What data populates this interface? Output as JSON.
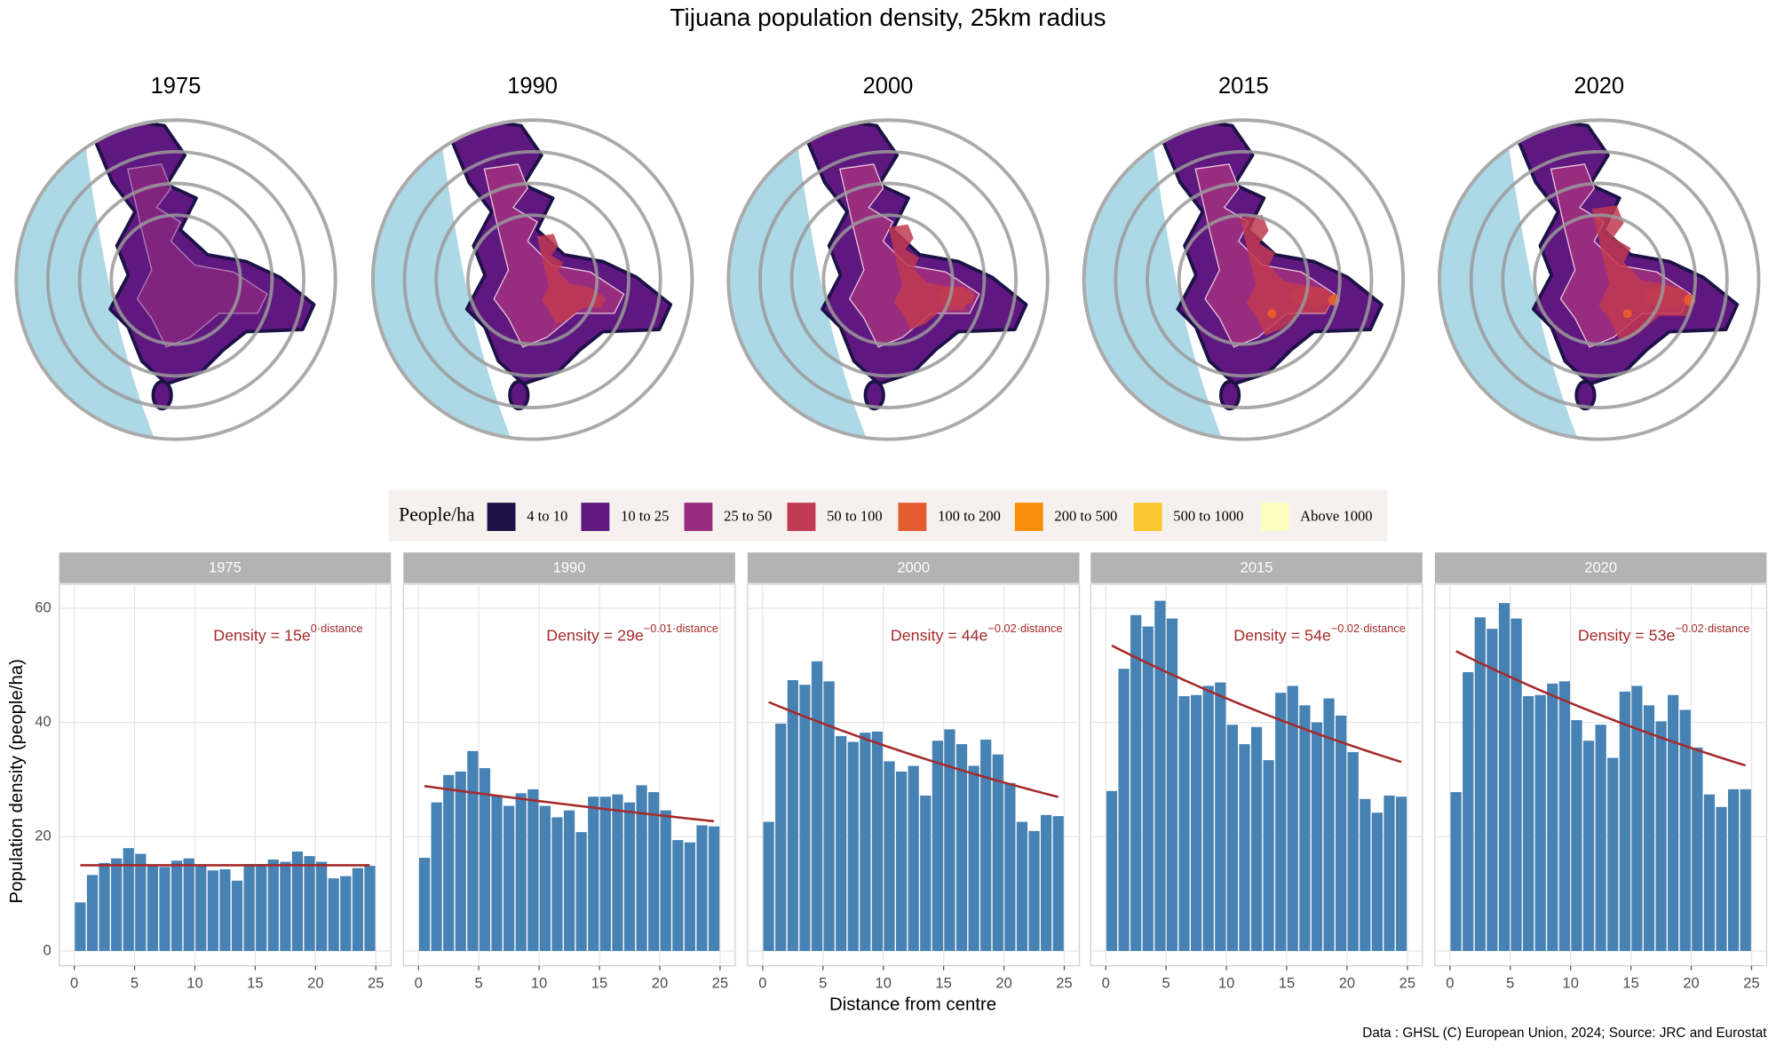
{
  "title": "Tijuana population density, 25km radius",
  "map_titles": [
    "1975",
    "1990",
    "2000",
    "2015",
    "2020"
  ],
  "legend": {
    "title": "People/ha",
    "items": [
      {
        "label": "4 to 10",
        "color": "#1d1147"
      },
      {
        "label": "10 to 25",
        "color": "#5f187f"
      },
      {
        "label": "25 to 50",
        "color": "#982d80"
      },
      {
        "label": "50 to 100",
        "color": "#c03a51"
      },
      {
        "label": "100 to 200",
        "color": "#e55c30"
      },
      {
        "label": "200 to 500",
        "color": "#f98e09"
      },
      {
        "label": "500 to 1000",
        "color": "#fbc72f"
      },
      {
        "label": "Above 1000",
        "color": "#fcfdbf"
      }
    ]
  },
  "axis_labels": {
    "y": "Population density (people/ha)",
    "x": "Distance from centre"
  },
  "caption": "Data : GHSL (C) European Union, 2024; Source: JRC and Eurostat",
  "chart_data": [
    {
      "type": "bar",
      "title": "1975",
      "color": "#4682b4",
      "x": [
        0.5,
        1.5,
        2.5,
        3.5,
        4.5,
        5.5,
        6.5,
        7.5,
        8.5,
        9.5,
        10.5,
        11.5,
        12.5,
        13.5,
        14.5,
        15.5,
        16.5,
        17.5,
        18.5,
        19.5,
        20.5,
        21.5,
        22.5,
        23.5,
        24.5
      ],
      "values": [
        8.5,
        13.3,
        15.4,
        16.2,
        18.0,
        17.0,
        14.9,
        14.7,
        15.8,
        16.2,
        14.9,
        14.1,
        14.3,
        12.3,
        15.2,
        15.2,
        16.0,
        15.6,
        17.4,
        16.6,
        15.6,
        12.7,
        13.1,
        14.5,
        14.9
      ],
      "xlim": [
        -1.25,
        26.25
      ],
      "xticks": [
        0,
        5,
        10,
        15,
        20,
        25
      ],
      "ylim": [
        -2.6,
        64.2
      ],
      "yticks": [
        0,
        20,
        40,
        60
      ],
      "grid": true,
      "fit": {
        "a": 15,
        "b": 0,
        "text": "Density = 15e",
        "exponent": "0·distance",
        "color": "#a52a2a"
      }
    },
    {
      "type": "bar",
      "title": "1990",
      "color": "#4682b4",
      "x": [
        0.5,
        1.5,
        2.5,
        3.5,
        4.5,
        5.5,
        6.5,
        7.5,
        8.5,
        9.5,
        10.5,
        11.5,
        12.5,
        13.5,
        14.5,
        15.5,
        16.5,
        17.5,
        18.5,
        19.5,
        20.5,
        21.5,
        22.5,
        23.5,
        24.5
      ],
      "values": [
        16.3,
        26.0,
        30.8,
        31.4,
        35.0,
        32.0,
        27.2,
        25.4,
        27.6,
        28.3,
        25.4,
        23.4,
        24.6,
        20.8,
        27.0,
        27.0,
        27.4,
        26.0,
        29.0,
        27.8,
        24.6,
        19.4,
        19.0,
        22.0,
        21.8
      ],
      "xlim": [
        -1.25,
        26.25
      ],
      "xticks": [
        0,
        5,
        10,
        15,
        20,
        25
      ],
      "ylim": [
        -2.6,
        64.2
      ],
      "yticks": [
        0,
        20,
        40,
        60
      ],
      "grid": true,
      "fit": {
        "a": 29,
        "b": -0.01,
        "text": "Density = 29e",
        "exponent": "−0.01·distance",
        "color": "#a52a2a"
      }
    },
    {
      "type": "bar",
      "title": "2000",
      "color": "#4682b4",
      "x": [
        0.5,
        1.5,
        2.5,
        3.5,
        4.5,
        5.5,
        6.5,
        7.5,
        8.5,
        9.5,
        10.5,
        11.5,
        12.5,
        13.5,
        14.5,
        15.5,
        16.5,
        17.5,
        18.5,
        19.5,
        20.5,
        21.5,
        22.5,
        23.5,
        24.5
      ],
      "values": [
        22.6,
        39.8,
        47.4,
        46.6,
        50.7,
        47.2,
        37.6,
        36.6,
        38.2,
        38.4,
        33.2,
        31.4,
        32.4,
        27.2,
        36.8,
        38.8,
        36.2,
        32.4,
        37.0,
        34.4,
        29.4,
        22.6,
        21.0,
        23.8,
        23.6
      ],
      "xlim": [
        -1.25,
        26.25
      ],
      "xticks": [
        0,
        5,
        10,
        15,
        20,
        25
      ],
      "ylim": [
        -2.6,
        64.2
      ],
      "yticks": [
        0,
        20,
        40,
        60
      ],
      "grid": true,
      "fit": {
        "a": 44,
        "b": -0.02,
        "text": "Density = 44e",
        "exponent": "−0.02·distance",
        "color": "#a52a2a"
      }
    },
    {
      "type": "bar",
      "title": "2015",
      "color": "#4682b4",
      "x": [
        0.5,
        1.5,
        2.5,
        3.5,
        4.5,
        5.5,
        6.5,
        7.5,
        8.5,
        9.5,
        10.5,
        11.5,
        12.5,
        13.5,
        14.5,
        15.5,
        16.5,
        17.5,
        18.5,
        19.5,
        20.5,
        21.5,
        22.5,
        23.5,
        24.5
      ],
      "values": [
        28.0,
        49.4,
        58.8,
        56.8,
        61.3,
        58.2,
        44.6,
        44.8,
        46.4,
        47.0,
        39.6,
        36.2,
        39.2,
        33.4,
        45.2,
        46.4,
        43.0,
        40.0,
        44.2,
        41.2,
        34.8,
        26.6,
        24.2,
        27.2,
        27.0
      ],
      "xlim": [
        -1.25,
        26.25
      ],
      "xticks": [
        0,
        5,
        10,
        15,
        20,
        25
      ],
      "ylim": [
        -2.6,
        64.2
      ],
      "yticks": [
        0,
        20,
        40,
        60
      ],
      "grid": true,
      "fit": {
        "a": 54,
        "b": -0.02,
        "text": "Density = 54e",
        "exponent": "−0.02·distance",
        "color": "#a52a2a"
      }
    },
    {
      "type": "bar",
      "title": "2020",
      "color": "#4682b4",
      "x": [
        0.5,
        1.5,
        2.5,
        3.5,
        4.5,
        5.5,
        6.5,
        7.5,
        8.5,
        9.5,
        10.5,
        11.5,
        12.5,
        13.5,
        14.5,
        15.5,
        16.5,
        17.5,
        18.5,
        19.5,
        20.5,
        21.5,
        22.5,
        23.5,
        24.5
      ],
      "values": [
        27.8,
        48.8,
        58.4,
        56.4,
        60.9,
        58.2,
        44.6,
        44.8,
        46.8,
        47.2,
        40.4,
        36.8,
        39.6,
        33.8,
        45.4,
        46.4,
        43.0,
        40.2,
        44.8,
        42.2,
        35.6,
        27.4,
        25.2,
        28.3,
        28.3
      ],
      "xlim": [
        -1.25,
        26.25
      ],
      "xticks": [
        0,
        5,
        10,
        15,
        20,
        25
      ],
      "ylim": [
        -2.6,
        64.2
      ],
      "yticks": [
        0,
        20,
        40,
        60
      ],
      "grid": true,
      "fit": {
        "a": 53,
        "b": -0.02,
        "text": "Density = 53e",
        "exponent": "−0.02·distance",
        "color": "#a52a2a"
      }
    }
  ]
}
